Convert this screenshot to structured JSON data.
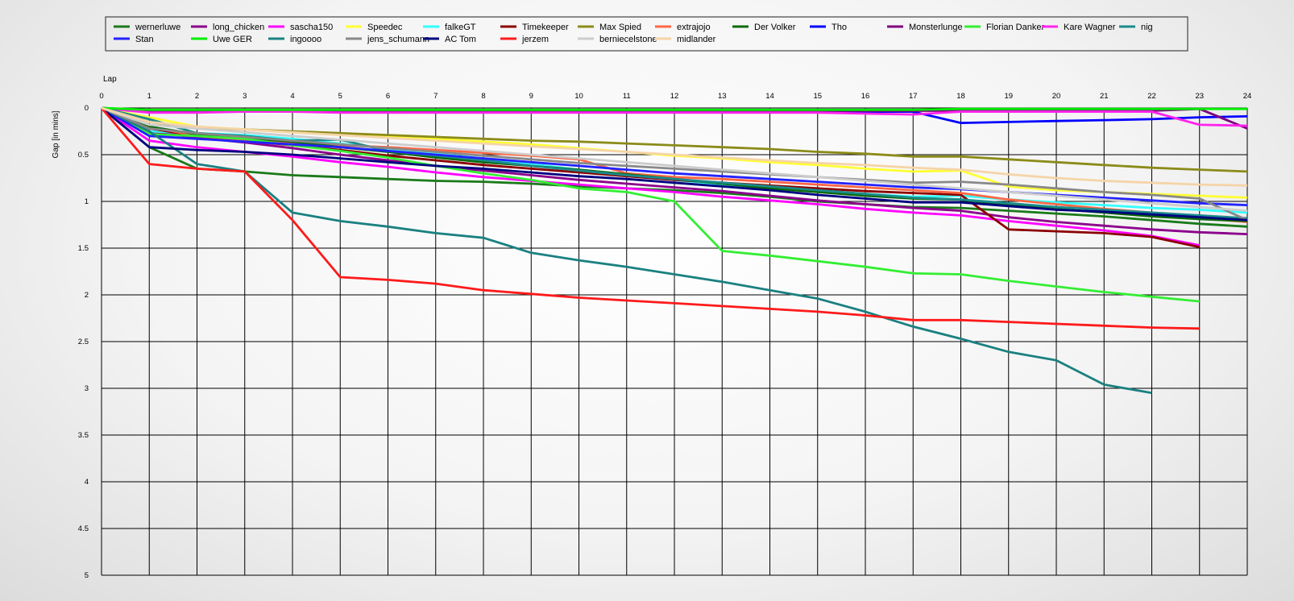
{
  "chart_data": {
    "type": "line",
    "x_axis_title": "Lap",
    "y_axis_title": "Gap [in mins]",
    "x_ticks": [
      "0",
      "1",
      "2",
      "3",
      "4",
      "5",
      "6",
      "7",
      "8",
      "9",
      "10",
      "11",
      "12",
      "13",
      "14",
      "15",
      "16",
      "17",
      "18",
      "19",
      "20",
      "21",
      "22",
      "23",
      "24"
    ],
    "y_ticks": [
      "0",
      "0.5",
      "1",
      "1.5",
      "2",
      "2.5",
      "3",
      "3.5",
      "4",
      "4.5",
      "5"
    ],
    "xlim": [
      0,
      24
    ],
    "ylim": [
      0,
      5
    ],
    "y_inverted": true,
    "grid": true,
    "legend_position": "top",
    "series": [
      {
        "name": "wernerluwe",
        "color": "#1a7a1a",
        "values": [
          0,
          0.42,
          0.65,
          0.68,
          0.72,
          0.74,
          0.76,
          0.78,
          0.79,
          0.81,
          0.84,
          0.86,
          0.88,
          0.91,
          0.95,
          1.0,
          1.03,
          1.06,
          1.07,
          1.1,
          1.13,
          1.16,
          1.2,
          1.24,
          1.27
        ]
      },
      {
        "name": "long_chicken",
        "color": "#8b008b",
        "values": [
          0,
          0.25,
          0.32,
          0.37,
          0.43,
          0.5,
          0.56,
          0.62,
          0.67,
          0.72,
          0.77,
          0.81,
          0.85,
          0.89,
          0.94,
          0.99,
          1.03,
          1.07,
          1.1,
          1.17,
          1.22,
          1.26,
          1.3,
          1.33,
          1.35
        ]
      },
      {
        "name": "sascha150",
        "color": "#ff00ff",
        "values": [
          0,
          0.35,
          0.42,
          0.47,
          0.52,
          0.58,
          0.63,
          0.69,
          0.74,
          0.78,
          0.82,
          0.86,
          0.9,
          0.95,
          0.99,
          1.03,
          1.08,
          1.12,
          1.15,
          1.21,
          1.26,
          1.31,
          1.37,
          1.47,
          null
        ]
      },
      {
        "name": "Speedec",
        "color": "#ffff33",
        "values": [
          0,
          0.1,
          0.2,
          0.23,
          0.26,
          0.29,
          0.31,
          0.33,
          0.36,
          0.39,
          0.43,
          0.47,
          0.51,
          0.54,
          0.58,
          0.61,
          0.65,
          0.68,
          0.67,
          0.84,
          0.88,
          0.9,
          0.92,
          0.94,
          0.96
        ]
      },
      {
        "name": "falkeGT",
        "color": "#33ffff",
        "values": [
          0,
          0.25,
          0.27,
          0.29,
          0.33,
          0.38,
          0.44,
          0.49,
          0.54,
          0.6,
          0.66,
          0.72,
          0.77,
          0.82,
          0.86,
          0.89,
          0.92,
          0.95,
          0.94,
          0.98,
          1.01,
          1.04,
          1.07,
          1.09,
          1.12
        ]
      },
      {
        "name": "Timekeeper",
        "color": "#8b0000",
        "values": [
          0,
          0.22,
          0.3,
          0.35,
          0.4,
          0.45,
          0.51,
          0.56,
          0.61,
          0.65,
          0.69,
          0.73,
          0.77,
          0.8,
          0.83,
          0.86,
          0.89,
          0.91,
          0.93,
          1.3,
          1.32,
          1.34,
          1.38,
          1.49,
          null
        ]
      },
      {
        "name": "Max Spied",
        "color": "#8b8b1a",
        "values": [
          0,
          0.15,
          0.21,
          0.23,
          0.25,
          0.27,
          0.29,
          0.31,
          0.33,
          0.35,
          0.36,
          0.38,
          0.4,
          0.42,
          0.44,
          0.47,
          0.49,
          0.52,
          0.52,
          0.55,
          0.58,
          0.61,
          0.64,
          0.66,
          0.68
        ]
      },
      {
        "name": "extrajojo",
        "color": "#ff6644",
        "values": [
          0,
          0.2,
          0.3,
          0.34,
          0.37,
          0.4,
          0.42,
          0.45,
          0.48,
          0.51,
          0.55,
          0.7,
          0.74,
          0.76,
          0.79,
          0.82,
          0.85,
          0.88,
          0.91,
          0.98,
          1.03,
          1.08,
          1.12,
          1.18,
          1.22
        ]
      },
      {
        "name": "Der Volker",
        "color": "#0a6a0a",
        "values": [
          0,
          0.2,
          0.28,
          0.32,
          0.36,
          0.42,
          0.47,
          0.53,
          0.58,
          0.62,
          0.66,
          0.71,
          0.76,
          0.81,
          0.86,
          0.9,
          0.94,
          0.97,
          0.98,
          1.04,
          1.08,
          1.12,
          1.16,
          1.19,
          1.21
        ]
      },
      {
        "name": "Tho",
        "color": "#0000ff",
        "values": [
          0,
          0.03,
          0.04,
          0.04,
          0.04,
          0.04,
          0.04,
          0.04,
          0.04,
          0.04,
          0.04,
          0.04,
          0.04,
          0.04,
          0.04,
          0.04,
          0.04,
          0.04,
          0.16,
          0.15,
          0.14,
          0.13,
          0.12,
          0.1,
          0.09
        ]
      },
      {
        "name": "Monsterlunge",
        "color": "#800080",
        "values": [
          0,
          0.03,
          0.03,
          0.03,
          0.03,
          0.03,
          0.03,
          0.03,
          0.03,
          0.03,
          0.03,
          0.03,
          0.03,
          0.03,
          0.03,
          0.03,
          0.03,
          0.03,
          0.03,
          0.03,
          0.03,
          0.03,
          0.03,
          0.01,
          0.22
        ]
      },
      {
        "name": "Florian Danker",
        "color": "#33ee33",
        "values": [
          0,
          0.28,
          0.3,
          0.33,
          0.4,
          0.46,
          0.53,
          0.62,
          0.7,
          0.77,
          0.86,
          0.9,
          1.0,
          1.53,
          1.58,
          1.64,
          1.7,
          1.77,
          1.78,
          1.85,
          1.91,
          1.97,
          2.02,
          2.07,
          null
        ]
      },
      {
        "name": "Kare Wagner",
        "color": "#ff22ee",
        "values": [
          0,
          0.05,
          0.05,
          0.04,
          0.04,
          0.05,
          0.05,
          0.05,
          0.05,
          0.05,
          0.05,
          0.05,
          0.05,
          0.05,
          0.05,
          0.05,
          0.06,
          0.07,
          0.04,
          0.04,
          0.04,
          0.04,
          0.04,
          0.18,
          0.19
        ]
      },
      {
        "name": "nig",
        "color": "#1a8a8a",
        "values": [
          0,
          0.12,
          0.27,
          0.3,
          0.35,
          0.34,
          0.46,
          0.51,
          0.56,
          0.62,
          0.67,
          0.72,
          0.76,
          0.8,
          0.84,
          0.88,
          0.92,
          0.96,
          0.98,
          1.02,
          1.06,
          1.09,
          1.12,
          1.15,
          1.18
        ]
      },
      {
        "name": "Stan",
        "color": "#2222ff",
        "values": [
          0,
          0.3,
          0.33,
          0.36,
          0.39,
          0.42,
          0.46,
          0.5,
          0.54,
          0.58,
          0.62,
          0.66,
          0.7,
          0.73,
          0.76,
          0.79,
          0.82,
          0.85,
          0.87,
          0.9,
          0.93,
          0.96,
          0.99,
          1.02,
          1.04
        ]
      },
      {
        "name": "Uwe GER",
        "color": "#00ee00",
        "values": [
          0,
          0.02,
          0.02,
          0.02,
          0.02,
          0.02,
          0.02,
          0.02,
          0.02,
          0.02,
          0.02,
          0.02,
          0.02,
          0.02,
          0.02,
          0.02,
          0.02,
          0.02,
          0.01,
          0.01,
          0.01,
          0.01,
          0.01,
          0.01,
          0.01
        ]
      },
      {
        "name": "ingoooo",
        "color": "#1a8080",
        "values": [
          0,
          0.25,
          0.6,
          0.68,
          1.12,
          1.21,
          1.27,
          1.34,
          1.39,
          1.55,
          1.63,
          1.7,
          1.78,
          1.86,
          1.95,
          2.04,
          2.18,
          2.34,
          2.47,
          2.61,
          2.7,
          2.96,
          3.05,
          null,
          null
        ]
      },
      {
        "name": "jens_schumann",
        "color": "#888888",
        "values": [
          0,
          0.22,
          0.27,
          0.31,
          0.35,
          0.39,
          0.43,
          0.47,
          0.51,
          0.55,
          0.59,
          0.62,
          0.65,
          0.68,
          0.71,
          0.74,
          0.77,
          0.8,
          0.79,
          0.82,
          0.86,
          0.9,
          0.93,
          0.97,
          1.2
        ]
      },
      {
        "name": "AC Tom",
        "color": "#000080",
        "values": [
          0,
          0.42,
          0.45,
          0.47,
          0.5,
          0.54,
          0.58,
          0.62,
          0.65,
          0.69,
          0.73,
          0.76,
          0.8,
          0.84,
          0.88,
          0.93,
          0.97,
          1.01,
          1.01,
          1.05,
          1.09,
          1.11,
          1.14,
          1.17,
          1.2
        ]
      },
      {
        "name": "jerzem",
        "color": "#ff1a1a",
        "values": [
          0,
          0.6,
          0.65,
          0.68,
          1.2,
          1.81,
          1.84,
          1.88,
          1.95,
          1.99,
          2.03,
          2.06,
          2.09,
          2.12,
          2.15,
          2.18,
          2.22,
          2.27,
          2.27,
          2.29,
          2.31,
          2.33,
          2.35,
          2.36,
          null
        ]
      },
      {
        "name": "berniecelstone",
        "color": "#cccccc",
        "values": [
          0,
          0.18,
          0.22,
          0.26,
          0.3,
          0.34,
          0.38,
          0.42,
          0.46,
          0.5,
          0.54,
          0.58,
          0.62,
          0.66,
          0.7,
          0.74,
          0.78,
          0.82,
          0.86,
          0.9,
          0.94,
          0.98,
          1.02,
          1.06,
          1.1
        ]
      },
      {
        "name": "midlander",
        "color": "#f5d4a8",
        "values": [
          0,
          0.15,
          0.2,
          0.23,
          0.26,
          0.29,
          0.32,
          0.35,
          0.38,
          0.41,
          0.44,
          0.47,
          0.5,
          0.53,
          0.56,
          0.59,
          0.61,
          0.64,
          0.66,
          0.71,
          0.75,
          0.78,
          0.8,
          0.82,
          0.83
        ]
      }
    ]
  }
}
